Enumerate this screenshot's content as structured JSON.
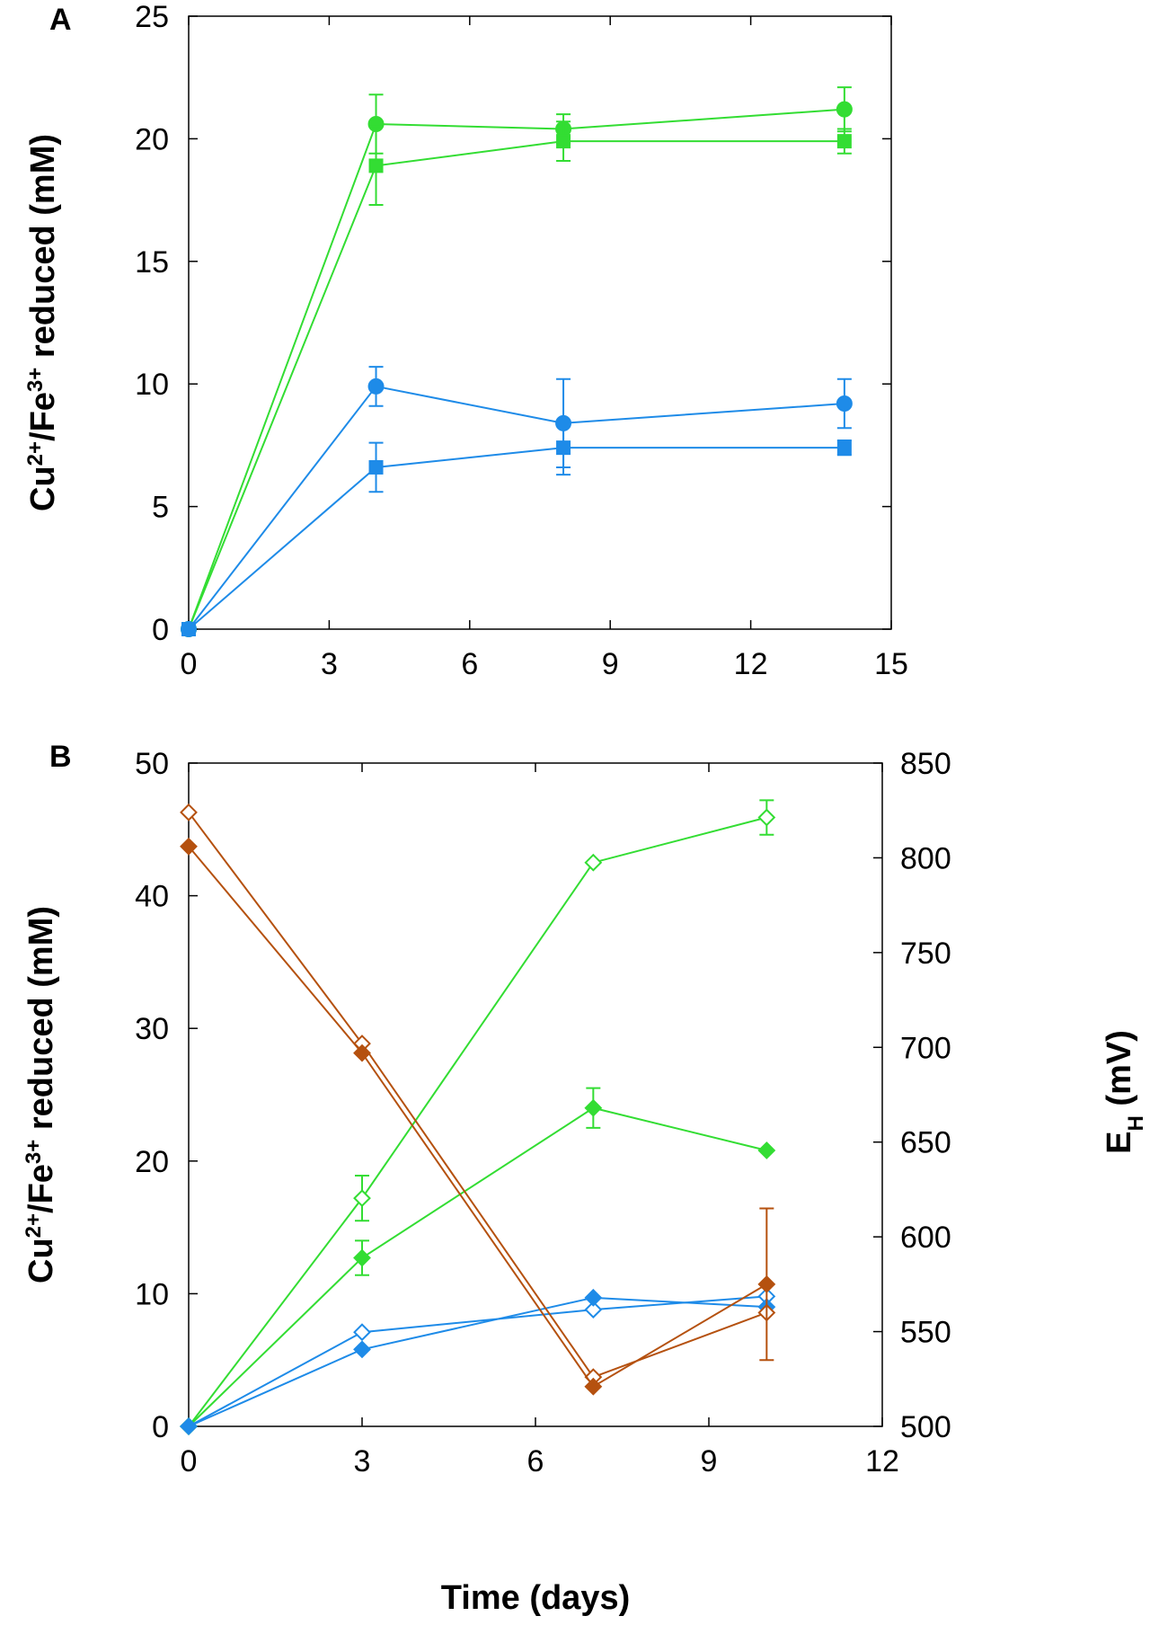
{
  "chart_data": [
    {
      "panel": "A",
      "type": "line",
      "ylabel": "Cu2+/Fe3+ reduced (mM)",
      "ylabel_parts": {
        "a": "Cu",
        "a_sup": "2+",
        "b": "/Fe",
        "b_sup": "3+",
        "c": " reduced (mM)"
      },
      "xlim": [
        0,
        15
      ],
      "ylim": [
        0,
        25
      ],
      "xticks": [
        "0",
        "3",
        "6",
        "9",
        "12",
        "15"
      ],
      "yticks": [
        "0",
        "5",
        "10",
        "15",
        "20",
        "25"
      ],
      "series": [
        {
          "color": "#33dd33",
          "marker": "circle",
          "fill": true,
          "x": [
            0,
            4,
            8,
            14
          ],
          "y": [
            0,
            20.6,
            20.4,
            21.2
          ],
          "err": [
            0,
            1.2,
            0.6,
            0.9
          ]
        },
        {
          "color": "#33dd33",
          "marker": "square",
          "fill": true,
          "x": [
            0,
            4,
            8,
            14
          ],
          "y": [
            0,
            18.9,
            19.9,
            19.9
          ],
          "err": [
            0,
            1.6,
            0.8,
            0.5
          ]
        },
        {
          "color": "#1e8be8",
          "marker": "circle",
          "fill": true,
          "x": [
            0,
            4,
            8,
            14
          ],
          "y": [
            0,
            9.9,
            8.4,
            9.2
          ],
          "err": [
            0,
            0.8,
            1.8,
            1.0
          ]
        },
        {
          "color": "#1e8be8",
          "marker": "square",
          "fill": true,
          "x": [
            0,
            4,
            8,
            14
          ],
          "y": [
            0,
            6.6,
            7.4,
            7.4
          ],
          "err": [
            0,
            1.0,
            1.1,
            0.3
          ]
        }
      ]
    },
    {
      "panel": "B",
      "type": "line",
      "xlabel": "Time (days)",
      "ylabel": "Cu2+/Fe3+ reduced (mM)",
      "ylabel_parts": {
        "a": "Cu",
        "a_sup": "2+",
        "b": "/Fe",
        "b_sup": "3+",
        "c": " reduced (mM)"
      },
      "y2label": "EH (mV)",
      "y2label_parts": {
        "a": "E",
        "a_sub": "H",
        "b": " (mV)"
      },
      "xlim": [
        0,
        12
      ],
      "ylim": [
        0,
        50
      ],
      "y2lim": [
        500,
        850
      ],
      "xticks": [
        "0",
        "3",
        "6",
        "9",
        "12"
      ],
      "yticks": [
        "0",
        "10",
        "20",
        "30",
        "40",
        "50"
      ],
      "y2ticks": [
        "500",
        "550",
        "600",
        "650",
        "700",
        "750",
        "800",
        "850"
      ],
      "series": [
        {
          "color": "#33dd33",
          "marker": "diamond",
          "fill": false,
          "axis": "left",
          "x": [
            0,
            3,
            7,
            10
          ],
          "y": [
            0,
            17.2,
            42.5,
            45.9
          ],
          "err": [
            0,
            1.7,
            0,
            1.3
          ]
        },
        {
          "color": "#33dd33",
          "marker": "diamond",
          "fill": true,
          "axis": "left",
          "x": [
            0,
            3,
            7,
            10
          ],
          "y": [
            0,
            12.7,
            24.0,
            20.8
          ],
          "err": [
            0,
            1.3,
            1.5,
            0
          ]
        },
        {
          "color": "#1e8be8",
          "marker": "diamond",
          "fill": false,
          "axis": "left",
          "x": [
            0,
            3,
            7,
            10
          ],
          "y": [
            0,
            7.1,
            8.8,
            9.8
          ],
          "err": [
            0,
            0,
            0,
            0
          ]
        },
        {
          "color": "#1e8be8",
          "marker": "diamond",
          "fill": true,
          "axis": "left",
          "x": [
            0,
            3,
            7,
            10
          ],
          "y": [
            0,
            5.8,
            9.7,
            9.0
          ],
          "err": [
            0,
            0,
            0,
            0
          ]
        },
        {
          "color": "#b5510f",
          "marker": "diamond",
          "fill": false,
          "axis": "right",
          "x": [
            0,
            3,
            7,
            10
          ],
          "y": [
            824,
            702,
            526,
            560
          ],
          "err": [
            0,
            0,
            0,
            0
          ]
        },
        {
          "color": "#b5510f",
          "marker": "diamond",
          "fill": true,
          "axis": "right",
          "x": [
            0,
            3,
            7,
            10
          ],
          "y": [
            806,
            697,
            521,
            575
          ],
          "err": [
            0,
            0,
            0,
            40
          ]
        }
      ]
    }
  ]
}
